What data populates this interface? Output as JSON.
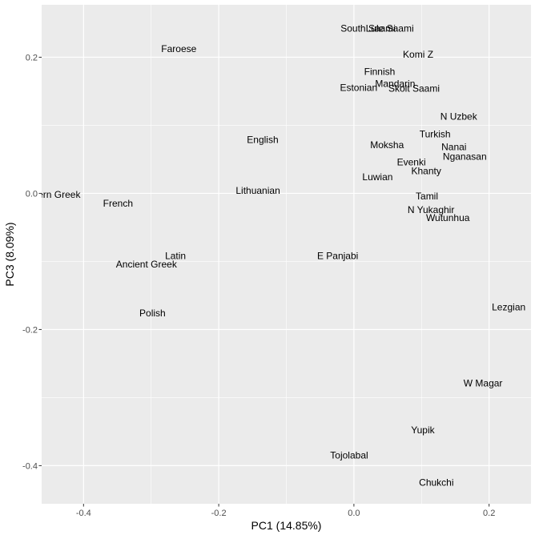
{
  "chart_data": {
    "type": "scatter",
    "xlabel": "PC1 (14.85%)",
    "ylabel": "PC3 (8.09%)",
    "xlim": [
      -0.462,
      0.262
    ],
    "ylim": [
      -0.456,
      0.277
    ],
    "x_ticks": [
      -0.4,
      -0.2,
      0.0,
      0.2
    ],
    "x_tick_labels": [
      "-0.4",
      "-0.2",
      "0.0",
      "0.2"
    ],
    "y_ticks": [
      -0.4,
      -0.2,
      0.0,
      0.2
    ],
    "y_tick_labels": [
      "-0.4",
      "-0.2",
      "0.0",
      "0.2"
    ],
    "grid": true,
    "panel_background": "#ebebeb",
    "grid_color": "#ffffff",
    "text_color": "#000000",
    "tick_color": "#4d4d4d",
    "points": [
      {
        "label": "South Saami",
        "x": 0.021,
        "y": 0.242
      },
      {
        "label": "Lule Saami",
        "x": 0.053,
        "y": 0.242
      },
      {
        "label": "Faroese",
        "x": -0.259,
        "y": 0.212
      },
      {
        "label": "Komi Z",
        "x": 0.095,
        "y": 0.204
      },
      {
        "label": "Finnish",
        "x": 0.038,
        "y": 0.179
      },
      {
        "label": "Mandarin",
        "x": 0.061,
        "y": 0.161
      },
      {
        "label": "Estonian",
        "x": 0.007,
        "y": 0.155
      },
      {
        "label": "Skolt Saami",
        "x": 0.089,
        "y": 0.154
      },
      {
        "label": "N Uzbek",
        "x": 0.155,
        "y": 0.113
      },
      {
        "label": "Turkish",
        "x": 0.12,
        "y": 0.087
      },
      {
        "label": "English",
        "x": -0.135,
        "y": 0.079
      },
      {
        "label": "Moksha",
        "x": 0.049,
        "y": 0.071
      },
      {
        "label": "Nanai",
        "x": 0.148,
        "y": 0.068
      },
      {
        "label": "Nganasan",
        "x": 0.164,
        "y": 0.054
      },
      {
        "label": "Evenki",
        "x": 0.085,
        "y": 0.046
      },
      {
        "label": "Khanty",
        "x": 0.107,
        "y": 0.033
      },
      {
        "label": "Luwian",
        "x": 0.035,
        "y": 0.024
      },
      {
        "label": "Lithuanian",
        "x": -0.142,
        "y": 0.004
      },
      {
        "label": "Modern Greek",
        "x": -0.45,
        "y": -0.002
      },
      {
        "label": "Tamil",
        "x": 0.108,
        "y": -0.004
      },
      {
        "label": "French",
        "x": -0.349,
        "y": -0.015
      },
      {
        "label": "N Yukaghir",
        "x": 0.114,
        "y": -0.024
      },
      {
        "label": "Wutunhua",
        "x": 0.139,
        "y": -0.036
      },
      {
        "label": "Latin",
        "x": -0.264,
        "y": -0.092
      },
      {
        "label": "E Panjabi",
        "x": -0.024,
        "y": -0.092
      },
      {
        "label": "Ancient Greek",
        "x": -0.307,
        "y": -0.104
      },
      {
        "label": "Lezgian",
        "x": 0.229,
        "y": -0.167
      },
      {
        "label": "Polish",
        "x": -0.298,
        "y": -0.176
      },
      {
        "label": "W Magar",
        "x": 0.191,
        "y": -0.279
      },
      {
        "label": "Yupik",
        "x": 0.102,
        "y": -0.348
      },
      {
        "label": "Tojolabal",
        "x": -0.007,
        "y": -0.385
      },
      {
        "label": "Chukchi",
        "x": 0.122,
        "y": -0.425
      }
    ]
  }
}
